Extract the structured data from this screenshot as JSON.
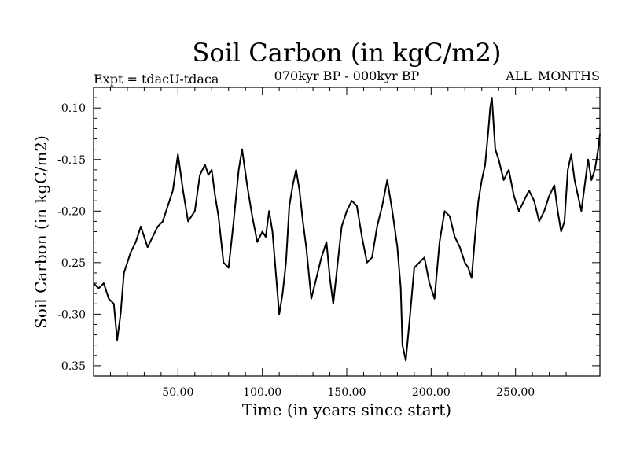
{
  "chart_data": {
    "type": "line",
    "title": "Soil Carbon (in kgC/m2)",
    "subtitle_left": "Expt = tdacU-tdaca",
    "subtitle_center": "070kyr BP - 000kyr BP",
    "subtitle_right": "ALL_MONTHS",
    "xlabel": "Time (in years since start)",
    "ylabel": "Soil Carbon (in kgC/m2)",
    "xlim": [
      0,
      300
    ],
    "ylim": [
      -0.36,
      -0.08
    ],
    "xticks": [
      50,
      100,
      150,
      200,
      250
    ],
    "xtick_labels": [
      "50.00",
      "100.00",
      "150.00",
      "200.00",
      "250.00"
    ],
    "yticks": [
      -0.1,
      -0.15,
      -0.2,
      -0.25,
      -0.3,
      -0.35
    ],
    "ytick_labels": [
      "-0.10",
      "-0.15",
      "-0.20",
      "-0.25",
      "-0.30",
      "-0.35"
    ],
    "series": [
      {
        "name": "Soil Carbon",
        "color": "#000000",
        "x": [
          0,
          3,
          6,
          9,
          12,
          14,
          16,
          18,
          20,
          22,
          25,
          28,
          32,
          35,
          38,
          41,
          44,
          47,
          50,
          53,
          56,
          60,
          63,
          66,
          68,
          70,
          72,
          74,
          77,
          80,
          83,
          86,
          88,
          91,
          94,
          97,
          100,
          102,
          104,
          106,
          108,
          110,
          112,
          114,
          116,
          118,
          120,
          122,
          124,
          126,
          129,
          132,
          135,
          138,
          140,
          142,
          144,
          147,
          150,
          153,
          156,
          159,
          162,
          165,
          168,
          171,
          174,
          177,
          180,
          182,
          183,
          185,
          187,
          190,
          193,
          196,
          199,
          202,
          205,
          208,
          211,
          214,
          217,
          220,
          222,
          224,
          226,
          228,
          230,
          232,
          234,
          235,
          236,
          238,
          240,
          243,
          246,
          249,
          252,
          255,
          258,
          261,
          264,
          267,
          270,
          273,
          275,
          277,
          279,
          281,
          283,
          285,
          287,
          289,
          291,
          293,
          295,
          297,
          299,
          300
        ],
        "y": [
          -0.27,
          -0.275,
          -0.27,
          -0.285,
          -0.29,
          -0.325,
          -0.3,
          -0.26,
          -0.25,
          -0.24,
          -0.23,
          -0.215,
          -0.235,
          -0.225,
          -0.215,
          -0.21,
          -0.195,
          -0.18,
          -0.145,
          -0.18,
          -0.21,
          -0.2,
          -0.165,
          -0.155,
          -0.165,
          -0.16,
          -0.185,
          -0.205,
          -0.25,
          -0.255,
          -0.21,
          -0.16,
          -0.14,
          -0.175,
          -0.205,
          -0.23,
          -0.22,
          -0.225,
          -0.2,
          -0.22,
          -0.26,
          -0.3,
          -0.28,
          -0.25,
          -0.195,
          -0.175,
          -0.16,
          -0.18,
          -0.21,
          -0.235,
          -0.285,
          -0.265,
          -0.245,
          -0.23,
          -0.265,
          -0.29,
          -0.26,
          -0.215,
          -0.2,
          -0.19,
          -0.195,
          -0.225,
          -0.25,
          -0.245,
          -0.215,
          -0.195,
          -0.17,
          -0.2,
          -0.235,
          -0.275,
          -0.33,
          -0.345,
          -0.31,
          -0.255,
          -0.25,
          -0.245,
          -0.27,
          -0.285,
          -0.23,
          -0.2,
          -0.205,
          -0.225,
          -0.235,
          -0.25,
          -0.255,
          -0.265,
          -0.225,
          -0.19,
          -0.17,
          -0.155,
          -0.12,
          -0.1,
          -0.09,
          -0.14,
          -0.15,
          -0.17,
          -0.16,
          -0.185,
          -0.2,
          -0.19,
          -0.18,
          -0.19,
          -0.21,
          -0.2,
          -0.185,
          -0.175,
          -0.2,
          -0.22,
          -0.21,
          -0.16,
          -0.145,
          -0.17,
          -0.185,
          -0.2,
          -0.175,
          -0.15,
          -0.17,
          -0.16,
          -0.14,
          -0.125
        ],
        "linewidth": 2
      }
    ],
    "grid": false,
    "legend": "none"
  }
}
